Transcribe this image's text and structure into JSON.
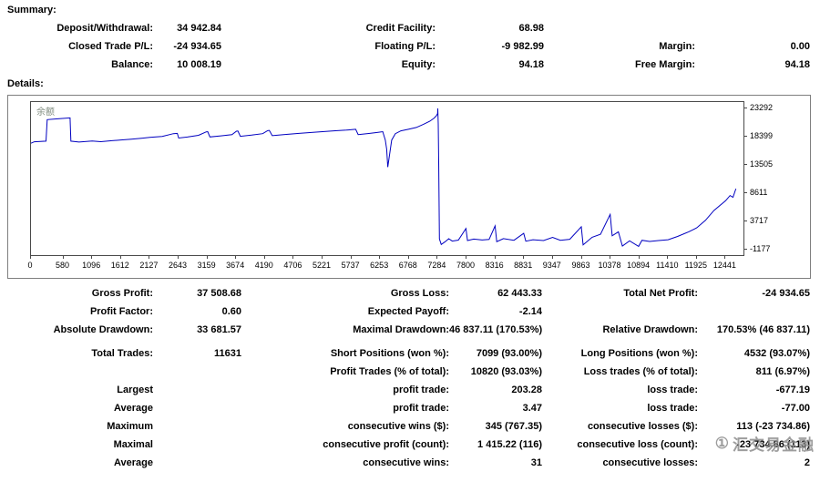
{
  "page": {
    "summary_label": "Summary:",
    "details_label": "Details:"
  },
  "summary_rows": [
    [
      "Deposit/Withdrawal:",
      "34 942.84",
      "Credit Facility:",
      "68.98",
      "",
      ""
    ],
    [
      "Closed Trade P/L:",
      "-24 934.65",
      "Floating P/L:",
      "-9 982.99",
      "Margin:",
      "0.00"
    ],
    [
      "Balance:",
      "10 008.19",
      "Equity:",
      "94.18",
      "Free Margin:",
      "94.18"
    ]
  ],
  "details_rows": [
    [
      "Gross Profit:",
      "37 508.68",
      "Gross Loss:",
      "62 443.33",
      "Total Net Profit:",
      "-24 934.65"
    ],
    [
      "Profit Factor:",
      "0.60",
      "Expected Payoff:",
      "-2.14",
      "",
      ""
    ],
    [
      "Absolute Drawdown:",
      "33 681.57",
      "Maximal Drawdown:",
      "46 837.11 (170.53%)",
      "Relative Drawdown:",
      "170.53% (46 837.11)"
    ],
    [
      "Total Trades:",
      "11631",
      "Short Positions (won %):",
      "7099 (93.00%)",
      "Long Positions (won %):",
      "4532 (93.07%)"
    ],
    [
      "",
      "",
      "Profit Trades (% of total):",
      "10820 (93.03%)",
      "Loss trades (% of total):",
      "811 (6.97%)"
    ],
    [
      "Largest",
      "",
      "profit trade:",
      "203.28",
      "loss trade:",
      "-677.19"
    ],
    [
      "Average",
      "",
      "profit trade:",
      "3.47",
      "loss trade:",
      "-77.00"
    ],
    [
      "Maximum",
      "",
      "consecutive wins ($):",
      "345 (767.35)",
      "consecutive losses ($):",
      "113 (-23 734.86)"
    ],
    [
      "Maximal",
      "",
      "consecutive profit (count):",
      "1 415.22 (116)",
      "consecutive loss (count):",
      "-23 734.86 (113)"
    ],
    [
      "Average",
      "",
      "consecutive wins:",
      "31",
      "consecutive losses:",
      "2"
    ]
  ],
  "watermark": {
    "icon": "①",
    "text": "汇交易金融"
  },
  "chart_data": {
    "type": "line",
    "title": "",
    "legend": "余额",
    "line_color": "#0000C0",
    "grid": false,
    "legend_position": "top-left-inside",
    "xlabel": "",
    "ylabel": "",
    "x_ticks": [
      0,
      580,
      1096,
      1612,
      2127,
      2643,
      3159,
      3674,
      4190,
      4706,
      5221,
      5737,
      6253,
      6768,
      7284,
      7800,
      8316,
      8831,
      9347,
      9863,
      10378,
      10894,
      11410,
      11925,
      12441
    ],
    "y_ticks": [
      23292,
      18399,
      13505,
      8611,
      3717,
      -1177
    ],
    "x_range": [
      0,
      12760
    ],
    "y_range": [
      -2200,
      24400
    ],
    "series_name": "Balance (余额)",
    "points": [
      [
        0,
        17250
      ],
      [
        60,
        17500
      ],
      [
        270,
        17600
      ],
      [
        290,
        21350
      ],
      [
        480,
        21480
      ],
      [
        700,
        21650
      ],
      [
        715,
        17600
      ],
      [
        860,
        17450
      ],
      [
        1096,
        17620
      ],
      [
        1250,
        17520
      ],
      [
        1450,
        17680
      ],
      [
        1612,
        17820
      ],
      [
        1800,
        17960
      ],
      [
        2000,
        18130
      ],
      [
        2127,
        18260
      ],
      [
        2350,
        18430
      ],
      [
        2550,
        18900
      ],
      [
        2620,
        18960
      ],
      [
        2645,
        18150
      ],
      [
        2800,
        18320
      ],
      [
        3000,
        18620
      ],
      [
        3140,
        19230
      ],
      [
        3165,
        19260
      ],
      [
        3205,
        18340
      ],
      [
        3400,
        18530
      ],
      [
        3600,
        18730
      ],
      [
        3680,
        19330
      ],
      [
        3705,
        19360
      ],
      [
        3750,
        18440
      ],
      [
        3950,
        18660
      ],
      [
        4150,
        18910
      ],
      [
        4240,
        19440
      ],
      [
        4268,
        19470
      ],
      [
        4320,
        18550
      ],
      [
        4550,
        18770
      ],
      [
        4800,
        18960
      ],
      [
        5050,
        19130
      ],
      [
        5221,
        19250
      ],
      [
        5450,
        19410
      ],
      [
        5650,
        19530
      ],
      [
        5790,
        19650
      ],
      [
        5815,
        19670
      ],
      [
        5860,
        18750
      ],
      [
        6050,
        18940
      ],
      [
        6200,
        19110
      ],
      [
        6300,
        19250
      ],
      [
        6345,
        17800
      ],
      [
        6370,
        16200
      ],
      [
        6390,
        13100
      ],
      [
        6425,
        15500
      ],
      [
        6460,
        17800
      ],
      [
        6525,
        18910
      ],
      [
        6625,
        19390
      ],
      [
        6768,
        19690
      ],
      [
        6900,
        19990
      ],
      [
        7030,
        20530
      ],
      [
        7140,
        21060
      ],
      [
        7220,
        21610
      ],
      [
        7262,
        22060
      ],
      [
        7282,
        22400
      ],
      [
        7286,
        23292
      ],
      [
        7294,
        20600
      ],
      [
        7302,
        14000
      ],
      [
        7315,
        600
      ],
      [
        7348,
        -350
      ],
      [
        7420,
        150
      ],
      [
        7482,
        650
      ],
      [
        7545,
        240
      ],
      [
        7655,
        420
      ],
      [
        7790,
        2430
      ],
      [
        7818,
        330
      ],
      [
        7930,
        580
      ],
      [
        8080,
        430
      ],
      [
        8205,
        520
      ],
      [
        8312,
        2880
      ],
      [
        8342,
        140
      ],
      [
        8460,
        660
      ],
      [
        8650,
        380
      ],
      [
        8825,
        1580
      ],
      [
        8862,
        230
      ],
      [
        8990,
        480
      ],
      [
        9180,
        330
      ],
      [
        9342,
        880
      ],
      [
        9480,
        380
      ],
      [
        9650,
        560
      ],
      [
        9855,
        2720
      ],
      [
        9888,
        -420
      ],
      [
        10050,
        900
      ],
      [
        10200,
        1420
      ],
      [
        10372,
        4880
      ],
      [
        10408,
        1150
      ],
      [
        10520,
        1850
      ],
      [
        10592,
        -620
      ],
      [
        10720,
        280
      ],
      [
        10882,
        -680
      ],
      [
        10942,
        380
      ],
      [
        11080,
        180
      ],
      [
        11240,
        330
      ],
      [
        11410,
        480
      ],
      [
        11580,
        1050
      ],
      [
        11780,
        1850
      ],
      [
        11925,
        2550
      ],
      [
        12080,
        3850
      ],
      [
        12230,
        5550
      ],
      [
        12441,
        7250
      ],
      [
        12520,
        8150
      ],
      [
        12572,
        7850
      ],
      [
        12625,
        9350
      ]
    ]
  }
}
